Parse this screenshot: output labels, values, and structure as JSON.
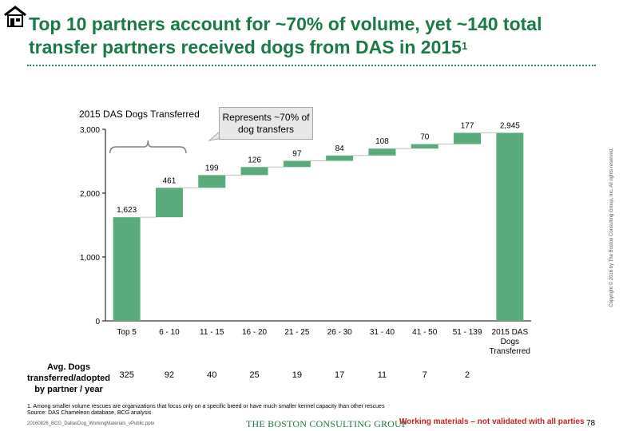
{
  "header": {
    "title": "Top 10 partners account for ~70% of volume, yet ~140 total transfer partners received dogs from DAS in 2015",
    "footnote_marker": "1"
  },
  "chart_data": {
    "type": "bar",
    "subtype": "waterfall",
    "title": "2015 DAS  Dogs Transferred",
    "categories": [
      "Top 5",
      "6 - 10",
      "11 - 15",
      "16 - 20",
      "21 - 25",
      "26 - 30",
      "31 - 40",
      "41 - 50",
      "51 - 139",
      "2015 DAS Dogs Transferred"
    ],
    "values": [
      1623,
      461,
      199,
      126,
      97,
      84,
      108,
      70,
      177,
      2945
    ],
    "value_labels": [
      "1,623",
      "461",
      "199",
      "126",
      "97",
      "84",
      "108",
      "70",
      "177",
      "2,945"
    ],
    "total_index": 9,
    "ylim": [
      0,
      3000
    ],
    "yticks": [
      0,
      1000,
      2000,
      3000
    ],
    "ytick_labels": [
      "0",
      "1,000",
      "2,000",
      "3,000"
    ],
    "grid": false,
    "bar_color": "#5aab7b",
    "callout": {
      "text": "Represents ~70% of dog transfers",
      "spans_categories": [
        "Top 5",
        "6 - 10"
      ]
    }
  },
  "avg_row": {
    "label": "Avg. Dogs transferred/adopted by partner / year",
    "values": [
      "325",
      "92",
      "40",
      "25",
      "19",
      "17",
      "11",
      "7",
      "2"
    ]
  },
  "footer": {
    "footnote": "1. Among smaller volume rescues are organizations that focus only on a specific breed or have much smaller kennel capacity than other rescues",
    "source": "Source: DAS Chameleon database, BCG analysis",
    "filename": "20160826_BCG_DallasDog_WorkingMaterials_vPublic.pptx",
    "brand": "THE BOSTON CONSULTING GROUP",
    "disclaimer": "Working materials – not validated with all parties",
    "page_number": "78",
    "copyright": "Copyright © 2016 by The Boston Consulting Group, Inc. All rights reserved."
  },
  "colors": {
    "title": "#1a7a46",
    "disclaimer": "#cc1f1f"
  }
}
